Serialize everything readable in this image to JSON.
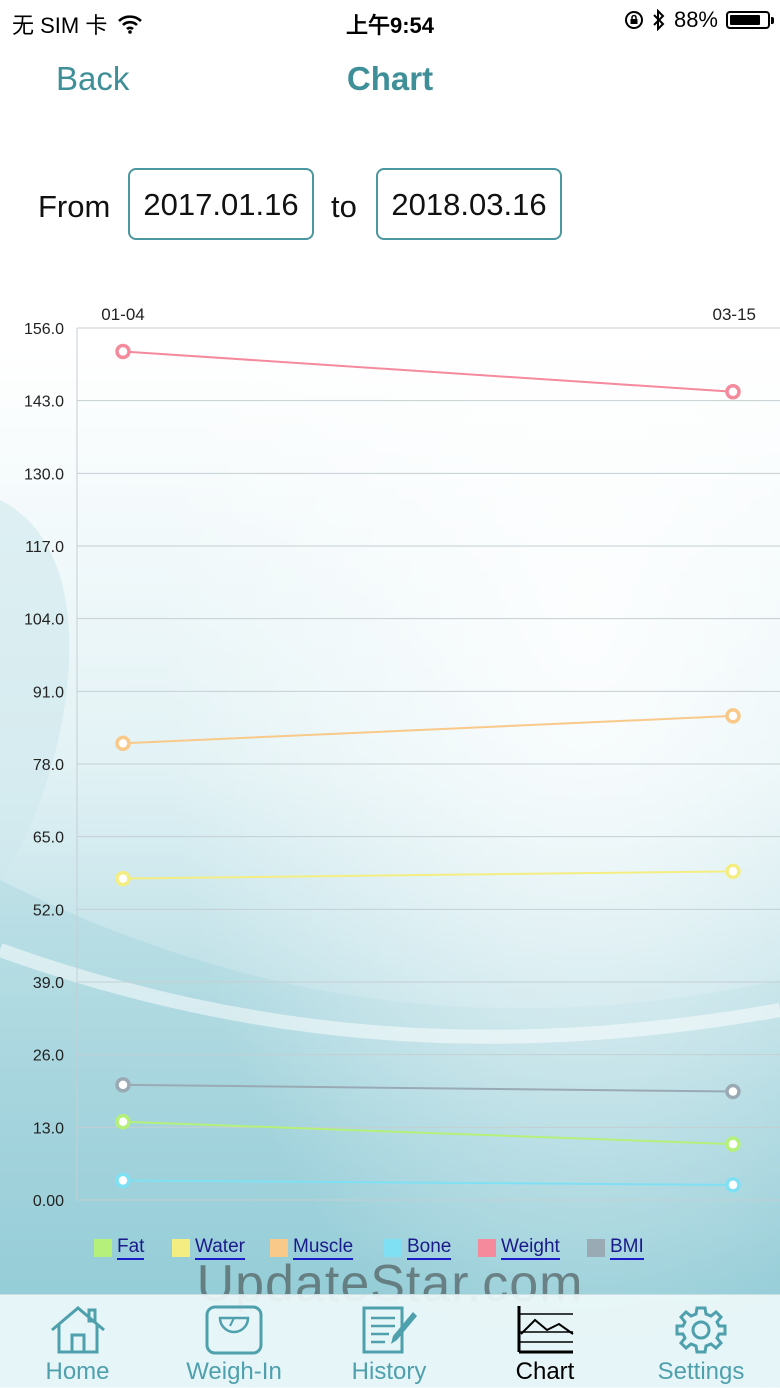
{
  "status_bar": {
    "carrier": "无 SIM 卡",
    "time": "上午9:54",
    "battery": "88%",
    "battery_level": 0.88
  },
  "nav": {
    "back_label": "Back",
    "title": "Chart"
  },
  "date_range": {
    "from_label": "From",
    "from_value": "2017.01.16",
    "to_label": "to",
    "to_value": "2018.03.16"
  },
  "chart_data": {
    "type": "line",
    "x": [
      "01-04",
      "03-15"
    ],
    "ylim": [
      0,
      156
    ],
    "y_ticks": [
      "156.0",
      "143.0",
      "130.0",
      "117.0",
      "104.0",
      "91.0",
      "78.0",
      "65.0",
      "52.0",
      "39.0",
      "26.0",
      "13.0",
      "0.00"
    ],
    "grid": true,
    "legend_position": "bottom",
    "series": [
      {
        "name": "Fat",
        "values": [
          14.0,
          10.0
        ],
        "color": "#b4f07a"
      },
      {
        "name": "Water",
        "values": [
          57.5,
          58.8
        ],
        "color": "#f4ee82"
      },
      {
        "name": "Muscle",
        "values": [
          81.7,
          86.6
        ],
        "color": "#f9c98a"
      },
      {
        "name": "Bone",
        "values": [
          3.5,
          2.7
        ],
        "color": "#7fe0f4"
      },
      {
        "name": "Weight",
        "values": [
          151.8,
          144.6
        ],
        "color": "#f48a9c"
      },
      {
        "name": "BMI",
        "values": [
          20.6,
          19.4
        ],
        "color": "#9aaab4"
      }
    ]
  },
  "watermark": "UpdateStar.com",
  "tabs": [
    {
      "label": "Home",
      "icon": "house-icon"
    },
    {
      "label": "Weigh-In",
      "icon": "scale-icon"
    },
    {
      "label": "History",
      "icon": "notepad-pencil-icon"
    },
    {
      "label": "Chart",
      "icon": "line-chart-icon",
      "active": true
    },
    {
      "label": "Settings",
      "icon": "gear-icon"
    }
  ]
}
